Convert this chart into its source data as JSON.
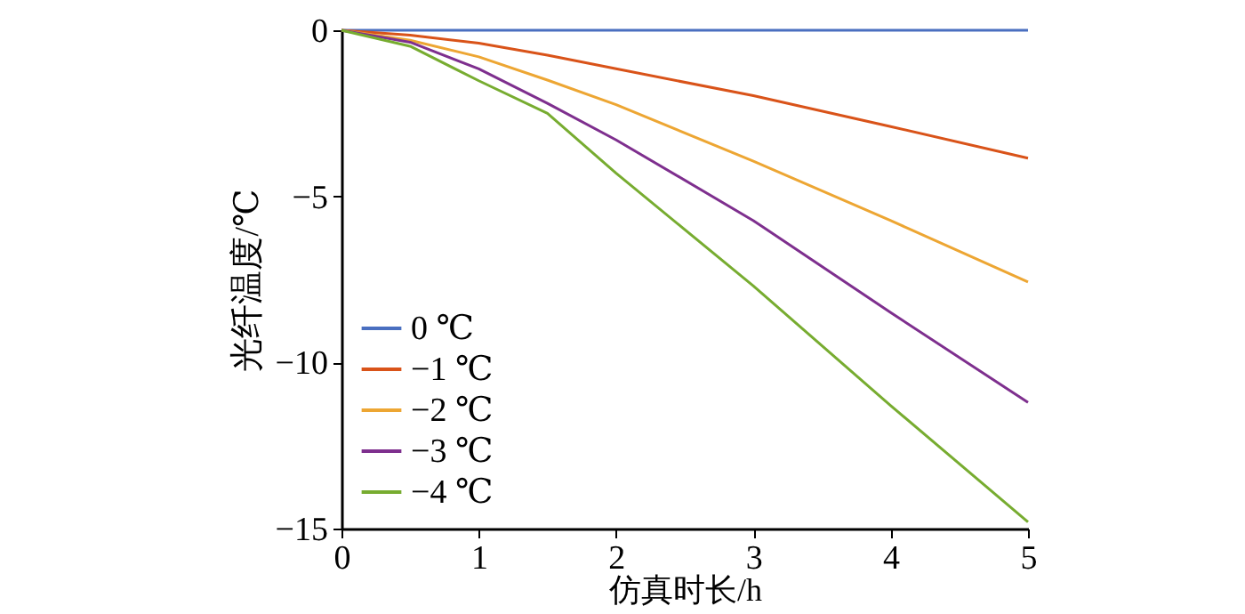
{
  "chart_data": {
    "type": "line",
    "xlabel": "仿真时长/h",
    "ylabel": "光纤温度/℃",
    "x": [
      0,
      0.5,
      1,
      1.5,
      2,
      3,
      4,
      5
    ],
    "series": [
      {
        "name": "0 ℃",
        "color": "#4a6fc0",
        "values": [
          0,
          0,
          0,
          0,
          0,
          0,
          0,
          0
        ]
      },
      {
        "name": "−1 ℃",
        "color": "#d95319",
        "values": [
          0,
          -0.15,
          -0.39,
          -0.75,
          -1.16,
          -1.97,
          -2.9,
          -3.85
        ]
      },
      {
        "name": "−2 ℃",
        "color": "#eda633",
        "values": [
          0,
          -0.3,
          -0.8,
          -1.5,
          -2.24,
          -3.94,
          -5.73,
          -7.58
        ]
      },
      {
        "name": "−3 ℃",
        "color": "#7e2f8e",
        "values": [
          0,
          -0.36,
          -1.16,
          -2.2,
          -3.3,
          -5.73,
          -8.5,
          -11.2
        ]
      },
      {
        "name": "−4 ℃",
        "color": "#77ac30",
        "values": [
          0,
          -0.48,
          -1.52,
          -2.5,
          -4.3,
          -7.7,
          -11.3,
          -14.8
        ]
      }
    ],
    "xlim": [
      0,
      5
    ],
    "xticks": [
      0,
      1,
      2,
      3,
      4,
      5
    ],
    "ylim": [
      -15,
      0
    ],
    "yticks": [
      -15,
      -10,
      -5,
      0
    ],
    "grid": false,
    "legend": "bottom left",
    "marker": "none",
    "line_style": "solid"
  }
}
